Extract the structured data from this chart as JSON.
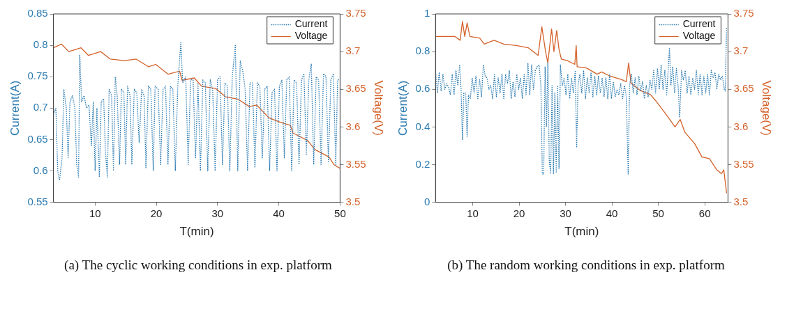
{
  "chart_data": [
    {
      "type": "line",
      "xlabel": "T(min)",
      "ylabel": "Current(A)",
      "y2label": "Voltage(V)",
      "xlim": [
        3.2,
        50
      ],
      "xticks": [
        10,
        20,
        30,
        40,
        50
      ],
      "ylim": [
        0.55,
        0.85
      ],
      "yticks": [
        0.55,
        0.6,
        0.65,
        0.7,
        0.75,
        0.8,
        0.85
      ],
      "y2lim": [
        3.5,
        3.75
      ],
      "y2ticks": [
        3.5,
        3.55,
        3.6,
        3.65,
        3.7,
        3.75
      ],
      "legend": "top right",
      "grid": false,
      "annotations": [
        "(a) The cyclic working conditions in exp. platform"
      ],
      "series": [
        {
          "name": "Current",
          "color": "#2a7ab0",
          "line_style": "dotted",
          "x": [
            3.2,
            3.6,
            3.9,
            4.2,
            4.6,
            4.9,
            5.3,
            5.6,
            5.9,
            6.3,
            6.7,
            7.0,
            7.3,
            7.5,
            7.8,
            8.2,
            8.6,
            9.0,
            9.4,
            9.7,
            10.0,
            10.3,
            10.7,
            11.0,
            11.4,
            11.7,
            12.0,
            12.3,
            12.7,
            13.0,
            13.3,
            13.6,
            14.0,
            14.3,
            14.7,
            15.0,
            15.3,
            15.7,
            16.0,
            16.4,
            16.8,
            17.2,
            17.6,
            18.0,
            18.3,
            18.7,
            19.1,
            19.5,
            19.8,
            20.3,
            20.7,
            21.1,
            21.5,
            21.9,
            22.3,
            22.7,
            23.1,
            23.5,
            24.0,
            24.3,
            24.8,
            25.2,
            25.6,
            26.0,
            26.4,
            26.8,
            27.2,
            27.6,
            28.0,
            28.4,
            28.8,
            29.2,
            29.6,
            30.0,
            30.4,
            30.8,
            31.2,
            31.6,
            32.0,
            32.4,
            32.9,
            33.3,
            33.7,
            34.1,
            34.5,
            34.9,
            35.3,
            35.7,
            36.1,
            36.5,
            36.9,
            37.3,
            37.7,
            38.1,
            38.5,
            38.9,
            39.3,
            39.7,
            40.1,
            40.5,
            40.9,
            41.3,
            41.7,
            42.1,
            42.5,
            42.9,
            43.3,
            43.7,
            44.1,
            44.5,
            44.9,
            45.3,
            45.7,
            46.1,
            46.5,
            46.9,
            47.3,
            47.7,
            48.1,
            48.5,
            48.9,
            49.3,
            49.6,
            50.0
          ],
          "values": [
            0.69,
            0.7,
            0.6,
            0.585,
            0.62,
            0.73,
            0.7,
            0.62,
            0.71,
            0.72,
            0.7,
            0.61,
            0.59,
            0.785,
            0.71,
            0.72,
            0.7,
            0.705,
            0.64,
            0.71,
            0.6,
            0.7,
            0.59,
            0.71,
            0.715,
            0.63,
            0.59,
            0.73,
            0.72,
            0.6,
            0.75,
            0.72,
            0.61,
            0.73,
            0.725,
            0.61,
            0.735,
            0.72,
            0.61,
            0.73,
            0.725,
            0.645,
            0.73,
            0.72,
            0.605,
            0.735,
            0.73,
            0.6,
            0.735,
            0.73,
            0.61,
            0.73,
            0.735,
            0.61,
            0.735,
            0.73,
            0.6,
            0.735,
            0.805,
            0.74,
            0.75,
            0.61,
            0.745,
            0.745,
            0.62,
            0.74,
            0.6,
            0.745,
            0.74,
            0.6,
            0.745,
            0.73,
            0.6,
            0.745,
            0.75,
            0.61,
            0.74,
            0.735,
            0.6,
            0.75,
            0.8,
            0.6,
            0.775,
            0.76,
            0.73,
            0.6,
            0.74,
            0.74,
            0.605,
            0.74,
            0.735,
            0.62,
            0.73,
            0.735,
            0.6,
            0.725,
            0.73,
            0.6,
            0.735,
            0.745,
            0.62,
            0.745,
            0.75,
            0.6,
            0.745,
            0.74,
            0.61,
            0.745,
            0.755,
            0.625,
            0.745,
            0.77,
            0.61,
            0.75,
            0.745,
            0.61,
            0.755,
            0.75,
            0.615,
            0.745,
            0.755,
            0.61,
            0.745,
            0.745
          ]
        },
        {
          "name": "Voltage",
          "color": "#d4622a",
          "line_style": "solid",
          "axis": "y2",
          "x": [
            3.2,
            4.5,
            5.7,
            7.7,
            8.9,
            10.9,
            12.5,
            14.8,
            16.7,
            18.7,
            19.9,
            21.9,
            23.8,
            24.2,
            26.2,
            27.4,
            29.7,
            31.3,
            33.3,
            35.2,
            36.4,
            38.4,
            40.3,
            41.9,
            42.3,
            44.7,
            45.9,
            48.2,
            49.0,
            50.0
          ],
          "values": [
            3.705,
            3.71,
            3.7,
            3.705,
            3.695,
            3.7,
            3.69,
            3.688,
            3.69,
            3.68,
            3.683,
            3.67,
            3.674,
            3.662,
            3.665,
            3.654,
            3.651,
            3.64,
            3.637,
            3.627,
            3.629,
            3.612,
            3.606,
            3.602,
            3.592,
            3.582,
            3.57,
            3.56,
            3.55,
            3.545
          ]
        }
      ]
    },
    {
      "type": "line",
      "xlabel": "T(min)",
      "ylabel": "Current(A)",
      "y2label": "Voltage(V)",
      "xlim": [
        2,
        65
      ],
      "xticks": [
        10,
        20,
        30,
        40,
        50,
        60
      ],
      "ylim": [
        0,
        1
      ],
      "yticks": [
        0,
        0.2,
        0.4,
        0.6,
        0.8,
        1
      ],
      "y2lim": [
        3.5,
        3.75
      ],
      "y2ticks": [
        3.5,
        3.55,
        3.6,
        3.65,
        3.7,
        3.75
      ],
      "legend": "top right",
      "grid": false,
      "annotations": [
        "(b) The random working conditions in exp. platform"
      ],
      "series": [
        {
          "name": "Current",
          "color": "#2a7ab0",
          "line_style": "dotted",
          "x": [
            2.0,
            2.4,
            2.8,
            3.2,
            3.6,
            4.0,
            4.4,
            4.8,
            5.2,
            5.6,
            6.0,
            6.4,
            6.8,
            7.2,
            7.5,
            7.8,
            8.1,
            8.5,
            8.8,
            9.1,
            9.5,
            9.9,
            10.3,
            10.7,
            11.1,
            11.5,
            11.9,
            12.3,
            12.7,
            13.1,
            13.5,
            13.9,
            14.3,
            14.7,
            15.1,
            15.5,
            15.9,
            16.3,
            16.7,
            17.1,
            17.5,
            17.9,
            18.3,
            18.7,
            19.1,
            19.5,
            19.9,
            20.3,
            20.7,
            21.1,
            21.5,
            21.9,
            22.3,
            22.7,
            23.1,
            23.5,
            23.9,
            24.3,
            24.7,
            25.0,
            25.3,
            25.6,
            25.9,
            26.2,
            26.5,
            26.8,
            27.1,
            27.4,
            27.7,
            28.0,
            28.3,
            28.6,
            28.9,
            29.3,
            29.7,
            30.1,
            30.5,
            30.9,
            31.3,
            31.7,
            32.1,
            32.4,
            32.7,
            33.1,
            33.5,
            33.9,
            34.3,
            34.7,
            35.1,
            35.5,
            35.9,
            36.3,
            36.7,
            37.1,
            37.5,
            37.9,
            38.3,
            38.7,
            39.1,
            39.5,
            39.9,
            40.3,
            40.7,
            41.1,
            41.5,
            41.9,
            42.3,
            42.7,
            43.1,
            43.5,
            43.8,
            44.2,
            44.6,
            45.0,
            45.4,
            45.8,
            46.2,
            46.6,
            47.0,
            47.4,
            47.8,
            48.2,
            48.6,
            49.0,
            49.4,
            49.8,
            50.2,
            50.6,
            51.0,
            51.4,
            51.8,
            52.4,
            52.7,
            53.1,
            53.5,
            53.9,
            54.3,
            54.6,
            55.0,
            55.4,
            55.8,
            56.2,
            56.6,
            57.0,
            57.4,
            57.8,
            58.2,
            58.6,
            59.0,
            59.4,
            59.8,
            60.2,
            60.6,
            61.0,
            61.4,
            61.8,
            62.2,
            62.6,
            63.0,
            63.4,
            63.8,
            64.2,
            64.4,
            64.7
          ],
          "values": [
            0.7,
            0.58,
            0.69,
            0.59,
            0.68,
            0.6,
            0.63,
            0.61,
            0.57,
            0.68,
            0.57,
            0.7,
            0.62,
            0.73,
            0.6,
            0.33,
            0.58,
            0.58,
            0.35,
            0.57,
            0.55,
            0.66,
            0.58,
            0.67,
            0.55,
            0.65,
            0.56,
            0.73,
            0.67,
            0.66,
            0.6,
            0.62,
            0.55,
            0.68,
            0.56,
            0.66,
            0.58,
            0.68,
            0.55,
            0.68,
            0.63,
            0.7,
            0.55,
            0.64,
            0.56,
            0.68,
            0.6,
            0.66,
            0.55,
            0.68,
            0.57,
            0.74,
            0.57,
            0.73,
            0.6,
            0.7,
            0.72,
            0.73,
            0.62,
            0.15,
            0.15,
            0.72,
            0.4,
            0.74,
            0.22,
            0.15,
            0.62,
            0.15,
            0.58,
            0.16,
            0.62,
            0.18,
            0.73,
            0.62,
            0.66,
            0.57,
            0.68,
            0.55,
            0.66,
            0.58,
            0.7,
            0.29,
            0.62,
            0.68,
            0.58,
            0.7,
            0.55,
            0.66,
            0.58,
            0.69,
            0.56,
            0.67,
            0.57,
            0.67,
            0.58,
            0.66,
            0.56,
            0.66,
            0.55,
            0.68,
            0.55,
            0.64,
            0.56,
            0.6,
            0.57,
            0.63,
            0.55,
            0.62,
            0.56,
            0.15,
            0.62,
            0.68,
            0.58,
            0.66,
            0.57,
            0.67,
            0.59,
            0.64,
            0.55,
            0.62,
            0.56,
            0.65,
            0.6,
            0.7,
            0.58,
            0.71,
            0.6,
            0.73,
            0.6,
            0.7,
            0.57,
            0.82,
            0.62,
            0.72,
            0.58,
            0.71,
            0.6,
            0.45,
            0.7,
            0.65,
            0.7,
            0.58,
            0.67,
            0.57,
            0.66,
            0.6,
            0.7,
            0.57,
            0.68,
            0.57,
            0.67,
            0.58,
            0.68,
            0.57,
            0.7,
            0.66,
            0.69,
            0.6,
            0.68,
            0.65,
            0.67,
            0.6,
            0.59,
            0.93
          ]
        },
        {
          "name": "Voltage",
          "color": "#d4622a",
          "line_style": "solid",
          "axis": "y2",
          "x": [
            2.0,
            6.2,
            7.3,
            7.8,
            8.3,
            8.8,
            9.4,
            11.5,
            12.5,
            14.6,
            16.7,
            19.4,
            22.0,
            24.1,
            24.9,
            25.7,
            26.2,
            27.0,
            27.5,
            28.1,
            28.6,
            29.1,
            30.4,
            32.0,
            32.3,
            32.5,
            34.6,
            36.8,
            37.8,
            39.4,
            42.0,
            43.1,
            43.6,
            44.1,
            46.2,
            48.3,
            49.4,
            51.5,
            53.6,
            54.7,
            55.7,
            57.8,
            59.4,
            61.0,
            62.6,
            63.6,
            64.1,
            64.7
          ],
          "values": [
            3.72,
            3.72,
            3.715,
            3.74,
            3.72,
            3.738,
            3.72,
            3.718,
            3.71,
            3.715,
            3.71,
            3.708,
            3.705,
            3.695,
            3.733,
            3.7,
            3.685,
            3.73,
            3.7,
            3.728,
            3.703,
            3.69,
            3.688,
            3.683,
            3.708,
            3.68,
            3.678,
            3.67,
            3.673,
            3.668,
            3.663,
            3.66,
            3.685,
            3.658,
            3.648,
            3.643,
            3.635,
            3.618,
            3.6,
            3.61,
            3.593,
            3.578,
            3.56,
            3.558,
            3.543,
            3.538,
            3.543,
            3.512
          ]
        }
      ]
    }
  ]
}
